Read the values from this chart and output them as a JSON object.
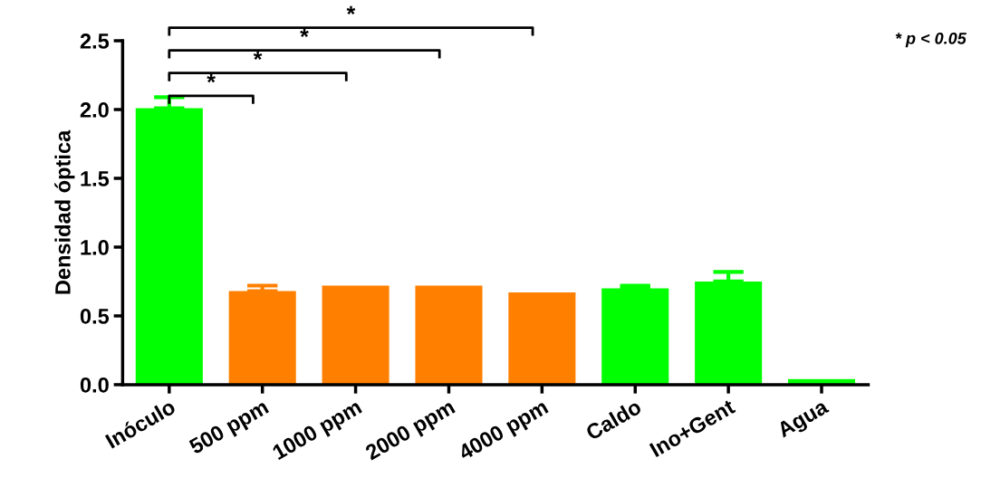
{
  "chart_data": {
    "type": "bar",
    "ylabel": "Densidad óptica",
    "categories": [
      "Inóculo",
      "500 ppm",
      "1000 ppm",
      "2000 ppm",
      "4000 ppm",
      "Caldo",
      "Ino+Gent",
      "Agua"
    ],
    "values": [
      2.01,
      0.68,
      0.72,
      0.72,
      0.67,
      0.7,
      0.75,
      0.04
    ],
    "errors": [
      0.08,
      0.04,
      null,
      null,
      null,
      0.02,
      0.07,
      null
    ],
    "colors": [
      "#00ff00",
      "#ff8000",
      "#ff8000",
      "#ff8000",
      "#ff8000",
      "#00ff00",
      "#00ff00",
      "#00ff00"
    ],
    "ylim": [
      0,
      2.5
    ],
    "yticks": [
      {
        "value": 0,
        "label": "0.0"
      },
      {
        "value": 0.5,
        "label": "0.5"
      },
      {
        "value": 1.0,
        "label": "1.0"
      },
      {
        "value": 1.5,
        "label": "1.5"
      },
      {
        "value": 2.0,
        "label": "2.0"
      },
      {
        "value": 2.5,
        "label": "2.5"
      }
    ],
    "grid": false,
    "legend": false,
    "annotations": [
      "*",
      "*",
      "*",
      "*",
      "* p < 0.05"
    ]
  }
}
